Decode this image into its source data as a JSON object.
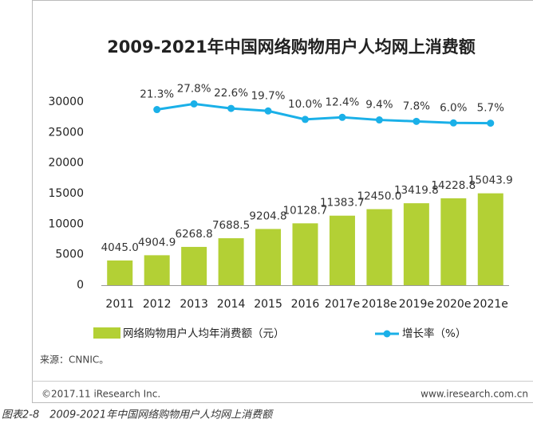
{
  "chart_data": {
    "type": "bar",
    "title": "2009-2021年中国网络购物用户人均网上消费额",
    "categories": [
      "2011",
      "2012",
      "2013",
      "2014",
      "2015",
      "2016",
      "2017e",
      "2018e",
      "2019e",
      "2020e",
      "2021e"
    ],
    "series": [
      {
        "name": "网络购物用户人均年消费额（元）",
        "color": "#b3d035",
        "values": [
          4045.0,
          4904.9,
          6268.8,
          7688.5,
          9204.8,
          10128.7,
          11383.7,
          12450.0,
          13419.8,
          14228.8,
          15043.9
        ],
        "value_labels": [
          "4045.0",
          "4904.9",
          "6268.8",
          "7688.5",
          "9204.8",
          "10128.7",
          "11383.7",
          "12450.0",
          "13419.8",
          "14228.8",
          "15043.9"
        ]
      },
      {
        "name": "增长率（%）",
        "color": "#1ab0e8",
        "type": "line",
        "axis": "y2",
        "values": [
          null,
          21.3,
          27.8,
          22.6,
          19.7,
          10.0,
          12.4,
          9.4,
          7.8,
          6.0,
          5.7
        ],
        "value_labels": [
          null,
          "21.3%",
          "27.8%",
          "22.6%",
          "19.7%",
          "10.0%",
          "12.4%",
          "9.4%",
          "7.8%",
          "6.0%",
          "5.7%"
        ]
      }
    ],
    "ylim": [
      0,
      30000
    ],
    "yticks": [
      0,
      5000,
      10000,
      15000,
      20000,
      25000,
      30000
    ],
    "y2lim": [
      -180,
      30
    ],
    "source": "来源：CNNIC。",
    "copyright": "©2017.11 iResearch Inc.",
    "website": "www.iresearch.com.cn",
    "caption": "图表2-8　2009-2021年中国网络购物用户人均网上消费额"
  }
}
